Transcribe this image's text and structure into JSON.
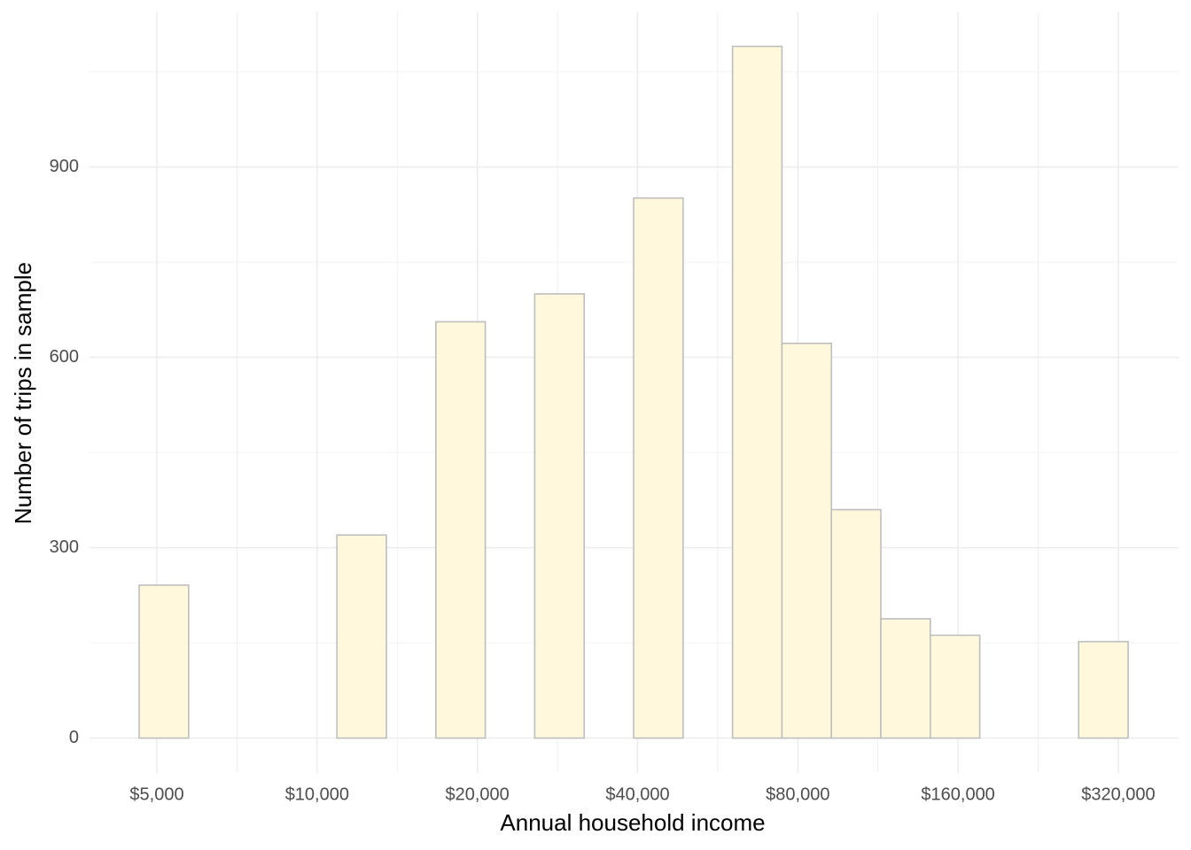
{
  "chart_data": {
    "type": "histogram",
    "x_label": "Annual household income",
    "y_label": "Number of trips in sample",
    "xscale": "log",
    "bins": [
      4631,
      5736,
      7104,
      8798,
      10896,
      13494,
      16713,
      20699,
      25636,
      31750,
      39322,
      48700,
      60315,
      74700,
      92515,
      114580,
      141905,
      175750,
      217670,
      269590,
      333900
    ],
    "counts": [
      241,
      0,
      0,
      0,
      320,
      0,
      656,
      0,
      700,
      0,
      851,
      0,
      1090,
      622,
      360,
      188,
      162,
      0,
      0,
      152
    ],
    "color": "#fff8dc",
    "edgecolor": "#bebebe",
    "xlim": [
      3736,
      415400
    ],
    "ylim": [
      -55,
      1145
    ],
    "xticks": [
      {
        "value": 5000,
        "label": "$5,000"
      },
      {
        "value": 10000,
        "label": "$10,000"
      },
      {
        "value": 20000,
        "label": "$20,000"
      },
      {
        "value": 40000,
        "label": "$40,000"
      },
      {
        "value": 80000,
        "label": "$80,000"
      },
      {
        "value": 160000,
        "label": "$160,000"
      },
      {
        "value": 320000,
        "label": "$320,000"
      }
    ],
    "yticks": [
      0,
      300,
      600,
      900
    ],
    "minor_xgrid": [
      7071,
      14142,
      28284,
      56569,
      113137,
      226274
    ],
    "minor_ygrid": [
      150,
      450,
      750,
      1050
    ],
    "grid": true
  }
}
